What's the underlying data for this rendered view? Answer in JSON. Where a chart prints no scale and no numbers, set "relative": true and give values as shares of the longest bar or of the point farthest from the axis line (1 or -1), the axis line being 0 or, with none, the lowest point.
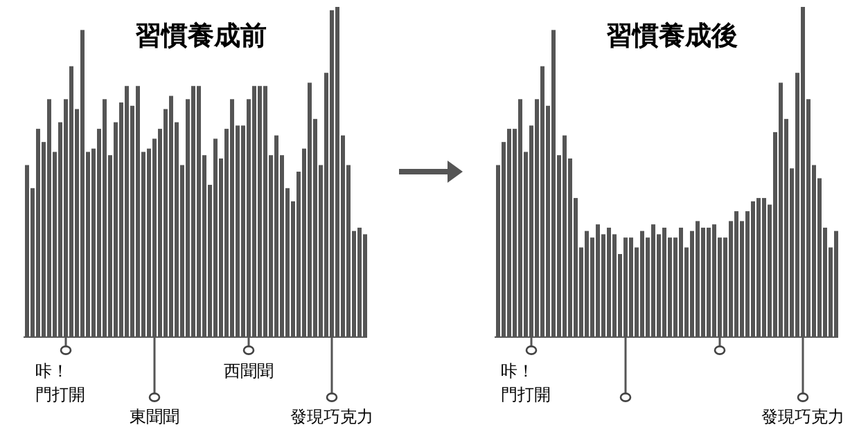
{
  "chart_data": [
    {
      "type": "bar",
      "title": "習慣養成前",
      "relative": true,
      "color": "#555555",
      "categories": [
        null,
        null,
        null,
        null,
        null,
        null,
        null,
        null,
        null,
        null,
        null,
        null,
        null,
        null,
        null,
        null,
        null,
        null,
        null,
        null,
        null,
        null,
        null,
        null,
        null,
        null,
        null,
        null,
        null,
        null,
        null,
        null,
        null,
        null,
        null,
        null,
        null,
        null,
        null,
        null,
        null,
        null,
        null,
        null,
        null,
        null,
        null,
        null,
        null,
        null,
        null,
        null,
        null,
        null,
        null,
        null,
        null,
        null,
        null,
        null,
        null,
        null
      ],
      "values": [
        0.52,
        0.45,
        0.63,
        0.59,
        0.72,
        0.56,
        0.65,
        0.72,
        0.82,
        0.69,
        0.93,
        0.56,
        0.57,
        0.63,
        0.72,
        0.55,
        0.65,
        0.71,
        0.76,
        0.7,
        0.76,
        0.56,
        0.57,
        0.6,
        0.63,
        0.69,
        0.73,
        0.65,
        0.52,
        0.72,
        0.76,
        0.76,
        0.55,
        0.46,
        0.6,
        0.54,
        0.63,
        0.72,
        0.64,
        0.64,
        0.72,
        0.76,
        0.76,
        0.76,
        0.55,
        0.61,
        0.55,
        0.45,
        0.41,
        0.5,
        0.57,
        0.77,
        0.66,
        0.52,
        0.8,
        0.99,
        1,
        0.61,
        0.52,
        0.32,
        0.33,
        0.31
      ],
      "annotations": [
        "咔！",
        "門打開",
        "東聞聞",
        "西聞聞",
        "發現巧克力"
      ]
    },
    {
      "type": "bar",
      "title": "習慣養成後",
      "relative": true,
      "color": "#555555",
      "categories": [
        null,
        null,
        null,
        null,
        null,
        null,
        null,
        null,
        null,
        null,
        null,
        null,
        null,
        null,
        null,
        null,
        null,
        null,
        null,
        null,
        null,
        null,
        null,
        null,
        null,
        null,
        null,
        null,
        null,
        null,
        null,
        null,
        null,
        null,
        null,
        null,
        null,
        null,
        null,
        null,
        null,
        null,
        null,
        null,
        null,
        null,
        null,
        null,
        null,
        null,
        null,
        null,
        null,
        null,
        null,
        null,
        null,
        null,
        null,
        null,
        null,
        null
      ],
      "values": [
        0.52,
        0.59,
        0.63,
        0.63,
        0.72,
        0.56,
        0.64,
        0.72,
        0.82,
        0.7,
        0.93,
        0.55,
        0.61,
        0.54,
        0.42,
        0.27,
        0.32,
        0.3,
        0.34,
        0.31,
        0.33,
        0.31,
        0.25,
        0.3,
        0.3,
        0.27,
        0.32,
        0.3,
        0.34,
        0.31,
        0.33,
        0.3,
        0.3,
        0.33,
        0.27,
        0.32,
        0.35,
        0.33,
        0.33,
        0.34,
        0.3,
        0.3,
        0.35,
        0.38,
        0.35,
        0.38,
        0.41,
        0.42,
        0.42,
        0.4,
        0.62,
        0.77,
        0.66,
        0.51,
        0.8,
        1,
        0.72,
        0.52,
        0.48,
        0.33,
        0.27,
        0.32
      ],
      "annotations": [
        "咔！",
        "門打開",
        "發現巧克力"
      ]
    }
  ]
}
